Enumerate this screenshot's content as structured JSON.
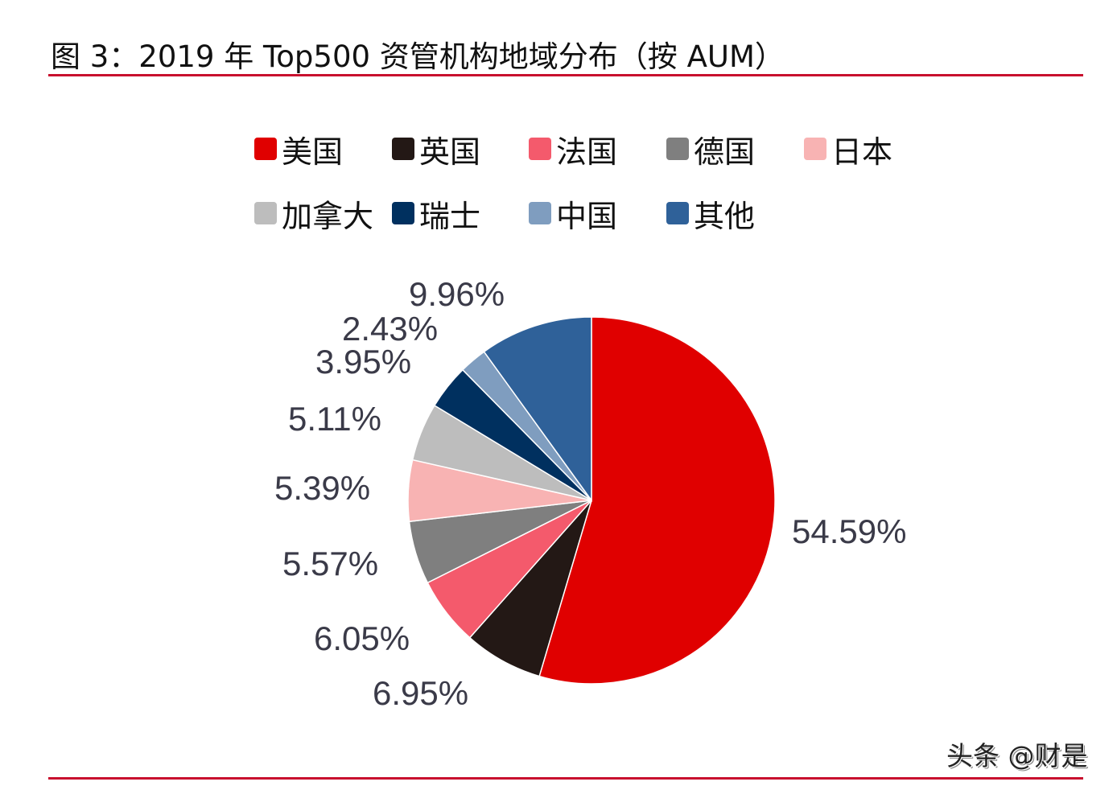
{
  "chart_data": {
    "type": "pie",
    "title": "图 3：2019 年 Top500 资管机构地域分布（按 AUM）",
    "start_angle": "12 o'clock",
    "direction": "clockwise",
    "legend_position": "top",
    "slices": [
      {
        "label": "美国",
        "value": 54.59,
        "value_label": "54.59%",
        "color": "#e00000"
      },
      {
        "label": "英国",
        "value": 6.95,
        "value_label": "6.95%",
        "color": "#231815"
      },
      {
        "label": "法国",
        "value": 6.05,
        "value_label": "6.05%",
        "color": "#f45a6c"
      },
      {
        "label": "德国",
        "value": 5.57,
        "value_label": "5.57%",
        "color": "#7f7f7f"
      },
      {
        "label": "日本",
        "value": 5.39,
        "value_label": "5.39%",
        "color": "#f8b3b3"
      },
      {
        "label": "加拿大",
        "value": 5.11,
        "value_label": "5.11%",
        "color": "#bdbdbd"
      },
      {
        "label": "瑞士",
        "value": 3.95,
        "value_label": "3.95%",
        "color": "#00305f"
      },
      {
        "label": "中国",
        "value": 2.43,
        "value_label": "2.43%",
        "color": "#7f9dbf"
      },
      {
        "label": "其他",
        "value": 9.96,
        "value_label": "9.96%",
        "color": "#2f6199"
      }
    ]
  },
  "watermark": "头条 @财是",
  "colors": {
    "rule": "#c8102e"
  }
}
